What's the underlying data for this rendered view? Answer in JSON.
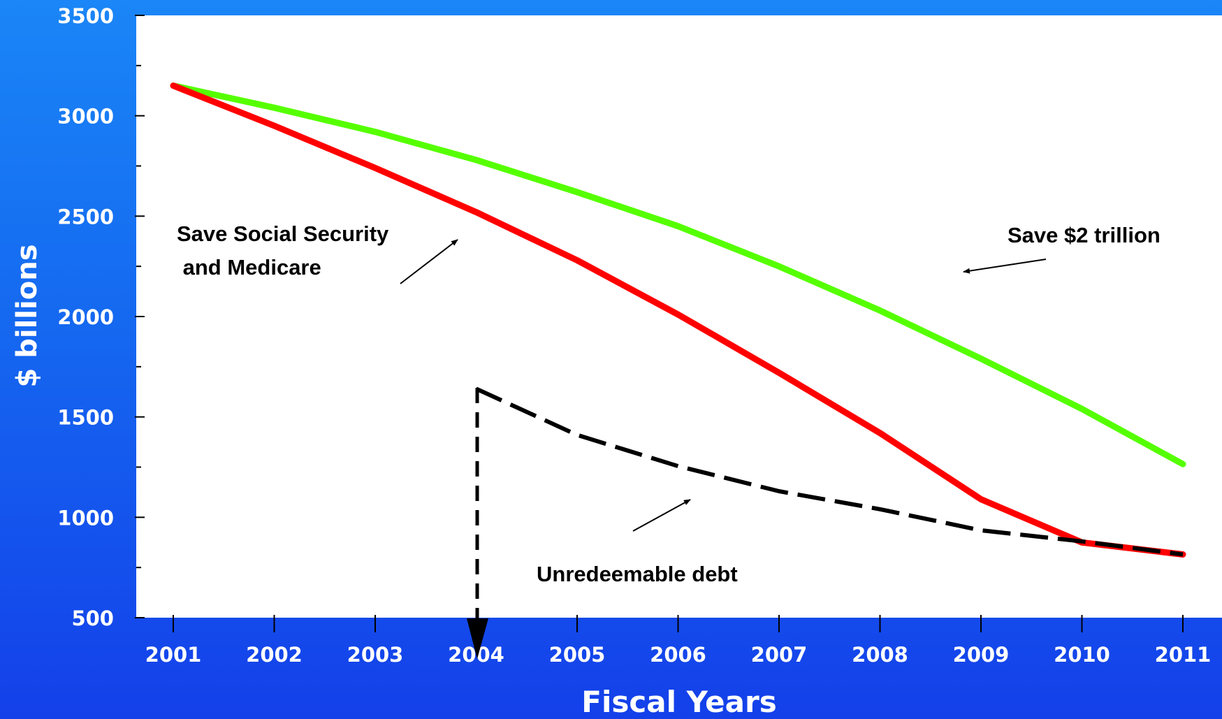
{
  "chart_data": {
    "type": "line",
    "title": "",
    "xlabel": "Fiscal Years",
    "ylabel": "$ billions",
    "x": [
      2001,
      2002,
      2003,
      2004,
      2005,
      2006,
      2007,
      2008,
      2009,
      2010,
      2011
    ],
    "x_tick_labels": [
      "2001",
      "2002",
      "2003",
      "2004",
      "2005",
      "2006",
      "2007",
      "2008",
      "2009",
      "2010",
      "2011"
    ],
    "y_tick_labels": [
      "500",
      "1000",
      "1500",
      "2000",
      "2500",
      "3000",
      "3500"
    ],
    "y_ticks": [
      500,
      1000,
      1500,
      2000,
      2500,
      3000,
      3500
    ],
    "ylim": [
      500,
      3500
    ],
    "grid": false,
    "series": [
      {
        "key": "save2t",
        "color": "#55ff00",
        "style": "solid",
        "x": [
          2001,
          2002,
          2003,
          2004,
          2005,
          2006,
          2007,
          2008,
          2009,
          2010,
          2011
        ],
        "values": [
          3150,
          3040,
          2920,
          2780,
          2620,
          2450,
          2250,
          2030,
          1790,
          1540,
          1265
        ]
      },
      {
        "key": "ssmed",
        "color": "#ff0000",
        "style": "solid",
        "x": [
          2001,
          2002,
          2003,
          2004,
          2005,
          2006,
          2007,
          2008,
          2009,
          2010,
          2011
        ],
        "values": [
          3150,
          2950,
          2740,
          2520,
          2280,
          2010,
          1720,
          1420,
          1090,
          875,
          815
        ]
      },
      {
        "key": "debt",
        "color": "#000000",
        "style": "dashed",
        "x": [
          2004,
          2005,
          2006,
          2007,
          2008,
          2009,
          2010,
          2011
        ],
        "values": [
          1640,
          1410,
          1255,
          1130,
          1040,
          935,
          880,
          815
        ]
      }
    ],
    "annotations": [
      {
        "key": "ss",
        "lines": [
          "Save Social Security",
          " and Medicare"
        ]
      },
      {
        "key": "save2t",
        "lines": [
          "Save $2 trillion"
        ]
      },
      {
        "key": "debt",
        "lines": [
          "Unredeemable debt"
        ]
      }
    ],
    "colors": {
      "plot_background": "#ffffff",
      "background_top": "#1a86f7",
      "background_bottom": "#1440ea",
      "axis_text": "#ffffff"
    }
  }
}
